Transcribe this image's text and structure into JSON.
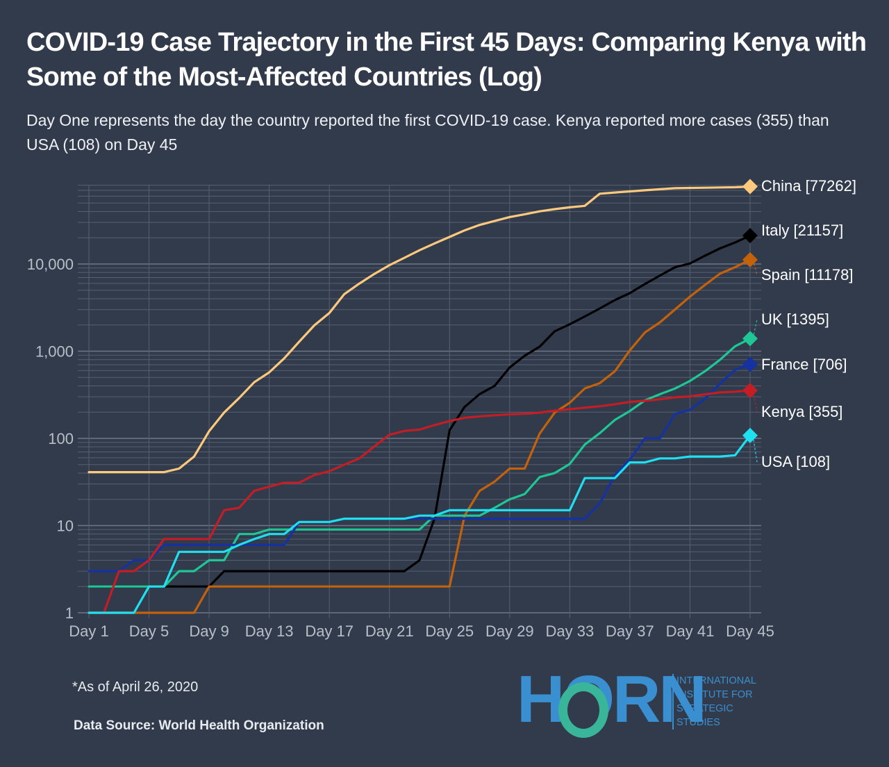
{
  "header": {
    "title": "COVID-19 Case Trajectory in the First 45 Days: Comparing Kenya with Some of the Most-Affected Countries (Log)",
    "subtitle": "Day One represents the day the country reported the first COVID-19 case. Kenya reported more cases (355) than USA (108) on Day 45"
  },
  "footer": {
    "note": "*As of April 26, 2020",
    "source": "Data Source: World Health Organization"
  },
  "logo": {
    "word": "HORN",
    "lines": [
      "INTERNATIONAL",
      "INSTITUTE FOR",
      "STRATEGIC",
      "STUDIES"
    ]
  },
  "chart_data": {
    "type": "line",
    "title": "COVID-19 Case Trajectory in the First 45 Days: Comparing Kenya with Some of the Most-Affected Countries (Log)",
    "xlabel": "",
    "ylabel": "",
    "yscale": "log",
    "ylim": [
      1,
      90000
    ],
    "xlim": [
      1,
      45
    ],
    "grid": true,
    "legend": "end-of-line labels at right",
    "x_ticks": [
      1,
      5,
      9,
      13,
      17,
      21,
      25,
      29,
      33,
      37,
      41,
      45
    ],
    "x_tick_labels": [
      "Day 1",
      "Day 5",
      "Day 9",
      "Day 13",
      "Day 17",
      "Day 21",
      "Day 25",
      "Day 29",
      "Day 33",
      "Day 37",
      "Day 41",
      "Day 45"
    ],
    "y_ticks": [
      1,
      10,
      100,
      1000,
      10000
    ],
    "y_tick_labels": [
      "1",
      "10",
      "100",
      "1,000",
      "10,000"
    ],
    "series": [
      {
        "name": "China",
        "label": "China [77262]",
        "color": "#fcc97d",
        "points": [
          [
            1,
            41
          ],
          [
            6,
            41
          ],
          [
            7,
            45
          ],
          [
            8,
            62
          ],
          [
            9,
            121
          ],
          [
            10,
            198
          ],
          [
            11,
            291
          ],
          [
            12,
            440
          ],
          [
            13,
            571
          ],
          [
            14,
            830
          ],
          [
            15,
            1287
          ],
          [
            16,
            1975
          ],
          [
            17,
            2744
          ],
          [
            18,
            4515
          ],
          [
            19,
            5974
          ],
          [
            20,
            7711
          ],
          [
            21,
            9692
          ],
          [
            22,
            11791
          ],
          [
            23,
            14380
          ],
          [
            24,
            17205
          ],
          [
            25,
            20438
          ],
          [
            26,
            24324
          ],
          [
            27,
            28018
          ],
          [
            28,
            31161
          ],
          [
            29,
            34546
          ],
          [
            30,
            37198
          ],
          [
            31,
            40171
          ],
          [
            32,
            42638
          ],
          [
            33,
            44653
          ],
          [
            34,
            46472
          ],
          [
            35,
            64000
          ],
          [
            36,
            66000
          ],
          [
            37,
            68000
          ],
          [
            38,
            70000
          ],
          [
            39,
            72000
          ],
          [
            40,
            74000
          ],
          [
            41,
            74500
          ],
          [
            42,
            75000
          ],
          [
            43,
            75500
          ],
          [
            44,
            76000
          ],
          [
            45,
            77262
          ]
        ]
      },
      {
        "name": "Italy",
        "label": "Italy [21157]",
        "color": "#000000",
        "points": [
          [
            1,
            2
          ],
          [
            9,
            2
          ],
          [
            10,
            3
          ],
          [
            22,
            3
          ],
          [
            23,
            4
          ],
          [
            24,
            12
          ],
          [
            25,
            124
          ],
          [
            26,
            229
          ],
          [
            27,
            322
          ],
          [
            28,
            400
          ],
          [
            29,
            650
          ],
          [
            30,
            888
          ],
          [
            31,
            1128
          ],
          [
            32,
            1694
          ],
          [
            33,
            2036
          ],
          [
            34,
            2502
          ],
          [
            35,
            3089
          ],
          [
            36,
            3858
          ],
          [
            37,
            4636
          ],
          [
            38,
            5883
          ],
          [
            39,
            7375
          ],
          [
            40,
            9172
          ],
          [
            41,
            10149
          ],
          [
            42,
            12462
          ],
          [
            43,
            15113
          ],
          [
            44,
            17660
          ],
          [
            45,
            21157
          ]
        ]
      },
      {
        "name": "Spain",
        "label": "Spain [11178]",
        "color": "#c4620b",
        "points": [
          [
            1,
            1
          ],
          [
            8,
            1
          ],
          [
            9,
            2
          ],
          [
            25,
            2
          ],
          [
            26,
            13
          ],
          [
            27,
            25
          ],
          [
            28,
            32
          ],
          [
            29,
            45
          ],
          [
            30,
            45
          ],
          [
            31,
            114
          ],
          [
            32,
            198
          ],
          [
            33,
            257
          ],
          [
            34,
            374
          ],
          [
            35,
            430
          ],
          [
            36,
            589
          ],
          [
            37,
            1024
          ],
          [
            38,
            1639
          ],
          [
            39,
            2140
          ],
          [
            40,
            3004
          ],
          [
            41,
            4231
          ],
          [
            42,
            5753
          ],
          [
            43,
            7753
          ],
          [
            44,
            9191
          ],
          [
            45,
            11178
          ]
        ]
      },
      {
        "name": "UK",
        "label": "UK [1395]",
        "color": "#1ec795",
        "points": [
          [
            1,
            2
          ],
          [
            6,
            2
          ],
          [
            7,
            3
          ],
          [
            8,
            3
          ],
          [
            9,
            4
          ],
          [
            10,
            4
          ],
          [
            11,
            8
          ],
          [
            12,
            8
          ],
          [
            13,
            9
          ],
          [
            23,
            9
          ],
          [
            24,
            13
          ],
          [
            27,
            13
          ],
          [
            28,
            16
          ],
          [
            29,
            20
          ],
          [
            30,
            23
          ],
          [
            31,
            36
          ],
          [
            32,
            40
          ],
          [
            33,
            51
          ],
          [
            34,
            85
          ],
          [
            35,
            115
          ],
          [
            36,
            163
          ],
          [
            37,
            206
          ],
          [
            38,
            273
          ],
          [
            39,
            321
          ],
          [
            40,
            373
          ],
          [
            41,
            456
          ],
          [
            42,
            590
          ],
          [
            43,
            798
          ],
          [
            44,
            1140
          ],
          [
            45,
            1395
          ]
        ]
      },
      {
        "name": "France",
        "label": "France [706]",
        "color": "#1532a3",
        "points": [
          [
            1,
            3
          ],
          [
            3,
            3
          ],
          [
            4,
            4
          ],
          [
            5,
            4
          ],
          [
            6,
            6
          ],
          [
            14,
            6
          ],
          [
            15,
            11
          ],
          [
            17,
            11
          ],
          [
            18,
            12
          ],
          [
            24,
            12
          ],
          [
            33,
            12
          ],
          [
            34,
            12
          ],
          [
            35,
            18
          ],
          [
            36,
            38
          ],
          [
            37,
            57
          ],
          [
            38,
            100
          ],
          [
            39,
            100
          ],
          [
            40,
            191
          ],
          [
            41,
            212
          ],
          [
            42,
            285
          ],
          [
            43,
            423
          ],
          [
            44,
            613
          ],
          [
            45,
            706
          ]
        ]
      },
      {
        "name": "Kenya",
        "label": "Kenya [355]",
        "color": "#c41d24",
        "points": [
          [
            1,
            1
          ],
          [
            2,
            1
          ],
          [
            3,
            3
          ],
          [
            4,
            3
          ],
          [
            5,
            4
          ],
          [
            6,
            7
          ],
          [
            9,
            7
          ],
          [
            10,
            15
          ],
          [
            11,
            16
          ],
          [
            12,
            25
          ],
          [
            13,
            28
          ],
          [
            14,
            31
          ],
          [
            15,
            31
          ],
          [
            16,
            38
          ],
          [
            17,
            42
          ],
          [
            18,
            50
          ],
          [
            19,
            59
          ],
          [
            20,
            81
          ],
          [
            21,
            110
          ],
          [
            22,
            122
          ],
          [
            23,
            126
          ],
          [
            24,
            142
          ],
          [
            25,
            158
          ],
          [
            26,
            172
          ],
          [
            27,
            179
          ],
          [
            28,
            184
          ],
          [
            29,
            189
          ],
          [
            30,
            191
          ],
          [
            31,
            197
          ],
          [
            32,
            208
          ],
          [
            33,
            216
          ],
          [
            34,
            225
          ],
          [
            35,
            234
          ],
          [
            36,
            246
          ],
          [
            37,
            262
          ],
          [
            38,
            270
          ],
          [
            39,
            281
          ],
          [
            40,
            296
          ],
          [
            41,
            303
          ],
          [
            42,
            320
          ],
          [
            43,
            336
          ],
          [
            44,
            343
          ],
          [
            45,
            355
          ]
        ]
      },
      {
        "name": "USA",
        "label": "USA [108]",
        "color": "#1ee0f0",
        "points": [
          [
            1,
            1
          ],
          [
            4,
            1
          ],
          [
            5,
            2
          ],
          [
            6,
            2
          ],
          [
            7,
            5
          ],
          [
            10,
            5
          ],
          [
            11,
            6
          ],
          [
            12,
            7
          ],
          [
            13,
            8
          ],
          [
            14,
            8
          ],
          [
            15,
            11
          ],
          [
            17,
            11
          ],
          [
            18,
            12
          ],
          [
            22,
            12
          ],
          [
            23,
            13
          ],
          [
            24,
            13
          ],
          [
            25,
            15
          ],
          [
            33,
            15
          ],
          [
            34,
            35
          ],
          [
            36,
            35
          ],
          [
            37,
            53
          ],
          [
            38,
            53
          ],
          [
            39,
            59
          ],
          [
            40,
            59
          ],
          [
            41,
            62
          ],
          [
            43,
            62
          ],
          [
            44,
            64
          ],
          [
            45,
            108
          ]
        ]
      }
    ]
  }
}
